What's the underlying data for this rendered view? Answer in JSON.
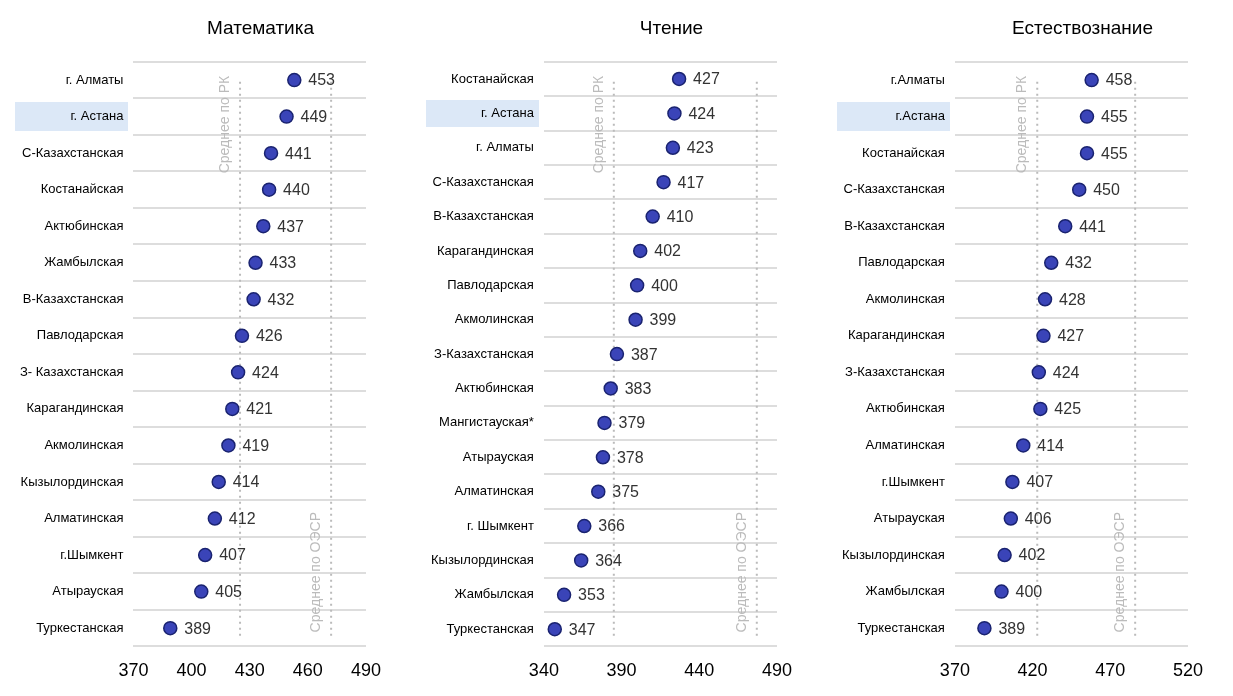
{
  "chart_data": [
    {
      "type": "scatter",
      "title": "Математика",
      "categories": [
        "г. Алматы",
        "г. Астана",
        "С-Казахстанская",
        "Костанайская",
        "Актюбинская",
        "Жамбылская",
        "В-Казахстанская",
        "Павлодарская",
        "З- Казахстанская",
        "Карагандинская",
        "Акмолинская",
        "Кызылординская",
        "Алматинская",
        "г.Шымкент",
        "Атырауская",
        "Туркестанская"
      ],
      "values": [
        453,
        449,
        441,
        440,
        437,
        433,
        432,
        426,
        424,
        421,
        419,
        414,
        412,
        407,
        405,
        389
      ],
      "color": "#3a44b8",
      "orientation": "horizontal",
      "xlim": [
        370,
        490
      ],
      "xticks": [
        370,
        400,
        430,
        460,
        490
      ],
      "grid": "y",
      "marker": "circle",
      "data_labels": true,
      "ref_lines": [
        {
          "axis": "x",
          "value": 425,
          "label": "Среднее по РК",
          "color": "#bbbbbb",
          "line_style": "dotted"
        },
        {
          "axis": "x",
          "value": 472,
          "label": "Среднее по ОЭСР",
          "color": "#bbbbbb",
          "line_style": "dotted"
        }
      ]
    },
    {
      "type": "scatter",
      "title": "Чтение",
      "categories": [
        "Костанайская",
        "г. Астана",
        "г. Алматы",
        "С-Казахстанская",
        "В-Казахстанская",
        "Карагандинская",
        "Павлодарская",
        "Акмолинская",
        "З-Казахстанская",
        "Актюбинская",
        "Мангистауская*",
        "Атырауская",
        "Алматинская",
        "г. Шымкент",
        "Кызылординская",
        "Жамбылская",
        "Туркестанская"
      ],
      "values": [
        427,
        424,
        423,
        417,
        410,
        402,
        400,
        399,
        387,
        383,
        379,
        378,
        375,
        366,
        364,
        353,
        347
      ],
      "color": "#3a44b8",
      "orientation": "horizontal",
      "xlim": [
        340,
        490
      ],
      "xticks": [
        340,
        390,
        440,
        490
      ],
      "grid": "y",
      "marker": "circle",
      "data_labels": true,
      "ref_lines": [
        {
          "axis": "x",
          "value": 385,
          "label": "Среднее по РК",
          "color": "#bbbbbb",
          "line_style": "dotted"
        },
        {
          "axis": "x",
          "value": 477,
          "label": "Среднее по ОЭСР",
          "color": "#bbbbbb",
          "line_style": "dotted"
        }
      ]
    },
    {
      "type": "scatter",
      "title": "Естествознание",
      "categories": [
        "г.Алматы",
        "г.Астана",
        "Костанайская",
        "С-Казахстанская",
        "В-Казахстанская",
        "Павлодарская",
        "Акмолинская",
        "Карагандинская",
        "З-Казахстанская",
        "Актюбинская",
        "Алматинская",
        "г.Шымкент",
        "Атырауская",
        "Кызылординская",
        "Жамбылская",
        "Туркестанская"
      ],
      "values": [
        458,
        455,
        455,
        450,
        441,
        432,
        428,
        427,
        424,
        425,
        414,
        407,
        406,
        402,
        400,
        389
      ],
      "color": "#3a44b8",
      "orientation": "horizontal",
      "xlim": [
        370,
        520
      ],
      "xticks": [
        370,
        420,
        470,
        520
      ],
      "grid": "y",
      "marker": "circle",
      "data_labels": true,
      "ref_lines": [
        {
          "axis": "x",
          "value": 423,
          "label": "Среднее по РК",
          "color": "#bbbbbb",
          "line_style": "dotted"
        },
        {
          "axis": "x",
          "value": 486,
          "label": "Среднее по ОЭСР",
          "color": "#bbbbbb",
          "line_style": "dotted"
        }
      ]
    }
  ]
}
